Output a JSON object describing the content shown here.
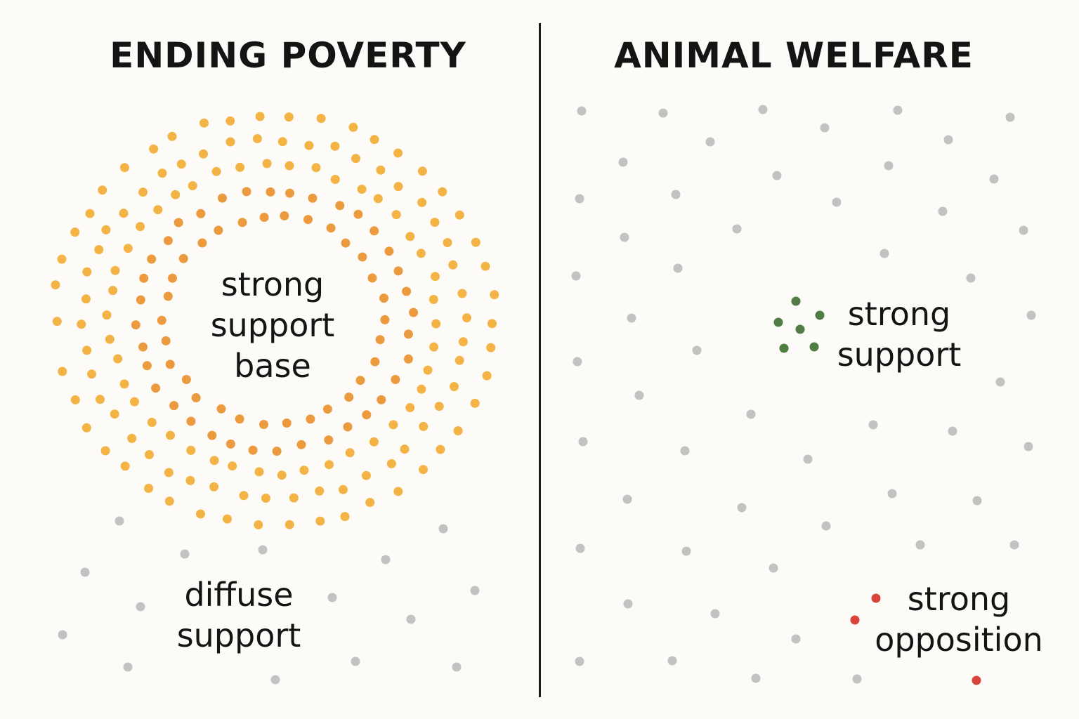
{
  "left_panel": {
    "title": "ENDING POVERTY",
    "labels": {
      "strong_base": [
        "strong",
        "support",
        "base"
      ],
      "diffuse": [
        "diffuse",
        "support"
      ]
    }
  },
  "right_panel": {
    "title": "ANIMAL WELFARE",
    "labels": {
      "strong_support": [
        "strong",
        "support"
      ],
      "strong_opposition": [
        "strong",
        "opposition"
      ]
    }
  },
  "colors": {
    "background": "#fcfbf8",
    "text": "#141414",
    "divider": "#1a1a1a",
    "support_inner": "#ec9a3e",
    "support_outer": "#f3b445",
    "neutral": "#c2c2c2",
    "strong_support": "#4f7d44",
    "strong_opposition": "#d9443a"
  }
}
